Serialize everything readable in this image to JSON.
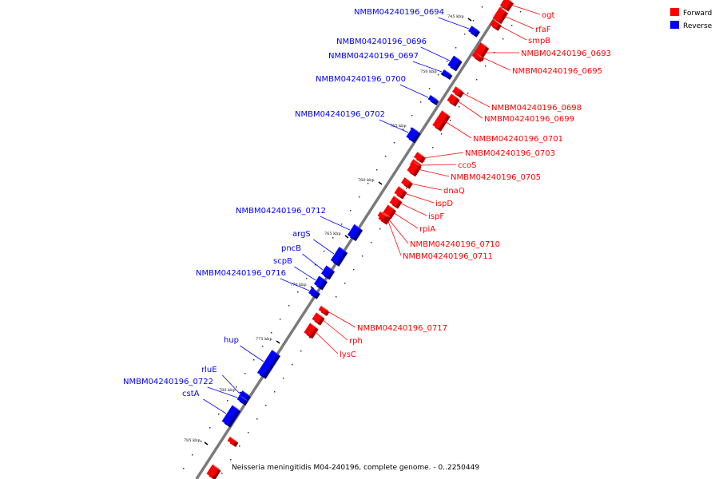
{
  "legend": [
    {
      "label": "Forward",
      "color": "#ff0000"
    },
    {
      "label": "Reverse",
      "color": "#0000ff"
    }
  ],
  "caption": "Neisseria meningitidis M04-240196, complete genome. - 0..2250449",
  "ticks": [
    "745 kbp",
    "750 kbp",
    "755 kbp",
    "760 kbp",
    "765 kbp",
    "770 kbp",
    "775 kbp",
    "780 kbp",
    "785 kbp"
  ],
  "forward_genes": [
    "ogt",
    "rfaF",
    "smpB",
    "NMBM04240196_0693",
    "NMBM04240196_0695",
    "NMBM04240196_0698",
    "NMBM04240196_0699",
    "NMBM04240196_0701",
    "NMBM04240196_0703",
    "ccoS",
    "NMBM04240196_0705",
    "dnaQ",
    "ispD",
    "ispF",
    "rpiA",
    "NMBM04240196_0710",
    "NMBM04240196_0711",
    "NMBM04240196_0717",
    "rph",
    "lysC"
  ],
  "reverse_genes": [
    "NMBM04240196_0694",
    "NMBM04240196_0696",
    "NMBM04240196_0697",
    "NMBM04240196_0700",
    "NMBM04240196_0702",
    "NMBM04240196_0712",
    "argS",
    "pncB",
    "scpB",
    "NMBM04240196_0716",
    "hup",
    "rluE",
    "NMBM04240196_0722",
    "cstA"
  ]
}
